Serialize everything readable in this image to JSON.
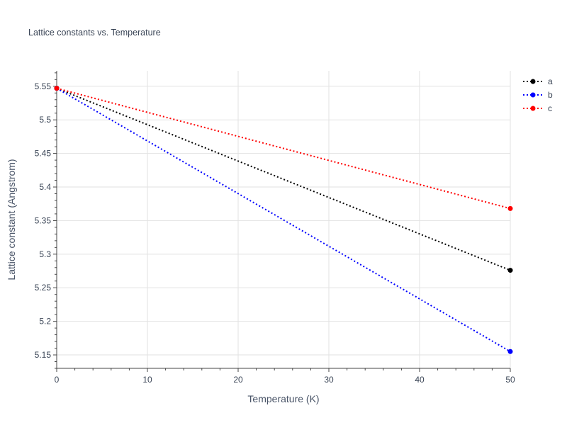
{
  "chart_data": {
    "type": "line",
    "title": "Lattice constants vs. Temperature",
    "xlabel": "Temperature (K)",
    "ylabel": "Lattice constant (Angstrom)",
    "xlim": [
      0,
      50
    ],
    "ylim": [
      5.13,
      5.573
    ],
    "x_ticks": [
      0,
      10,
      20,
      30,
      40,
      50
    ],
    "x_tick_labels": [
      "0",
      "10",
      "20",
      "30",
      "40",
      "50"
    ],
    "y_ticks": [
      5.15,
      5.2,
      5.25,
      5.3,
      5.35,
      5.4,
      5.45,
      5.5,
      5.55
    ],
    "y_tick_labels": [
      "5.15",
      "5.2",
      "5.25",
      "5.3",
      "5.35",
      "5.4",
      "5.45",
      "5.5",
      "5.55"
    ],
    "grid": true,
    "legend_position": "top-right",
    "x": [
      0,
      50
    ],
    "series": [
      {
        "name": "a",
        "color": "#000000",
        "line_style": "dotted",
        "values": [
          5.547,
          5.276
        ]
      },
      {
        "name": "b",
        "color": "#0000ff",
        "line_style": "dotted",
        "values": [
          5.547,
          5.155
        ]
      },
      {
        "name": "c",
        "color": "#ff0000",
        "line_style": "dotted",
        "values": [
          5.547,
          5.368
        ]
      }
    ]
  }
}
